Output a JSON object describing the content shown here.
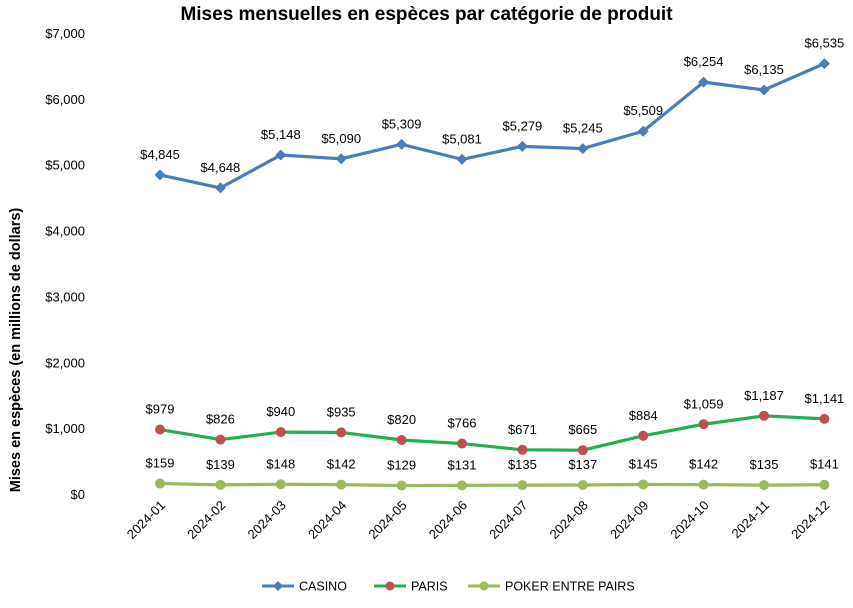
{
  "chart_data": {
    "type": "line",
    "title": "Mises mensuelles en espèces par catégorie de produit",
    "xlabel": "",
    "ylabel": "Mises en espèces (en millions de dollars)",
    "categories": [
      "2024-01",
      "2024-02",
      "2024-03",
      "2024-04",
      "2024-05",
      "2024-06",
      "2024-07",
      "2024-08",
      "2024-09",
      "2024-10",
      "2024-11",
      "2024-12"
    ],
    "ylim": [
      0,
      7000
    ],
    "yticks": [
      0,
      1000,
      2000,
      3000,
      4000,
      5000,
      6000,
      7000
    ],
    "ytick_labels": [
      "$0",
      "$1,000",
      "$2,000",
      "$3,000",
      "$4,000",
      "$5,000",
      "$6,000",
      "$7,000"
    ],
    "grid": false,
    "legend_position": "bottom",
    "series": [
      {
        "name": "CASINO",
        "color": "#4a7ebb",
        "marker": "diamond",
        "values": [
          4845,
          4648,
          5148,
          5090,
          5309,
          5081,
          5279,
          5245,
          5509,
          6254,
          6135,
          6535
        ],
        "labels": [
          "$4,845",
          "$4,648",
          "$5,148",
          "$5,090",
          "$5,309",
          "$5,081",
          "$5,279",
          "$5,245",
          "$5,509",
          "$6,254",
          "$6,135",
          "$6,535"
        ]
      },
      {
        "name": "PARIS",
        "color": "#1fb050",
        "marker_color": "#c0504d",
        "marker": "circle",
        "values": [
          979,
          826,
          940,
          935,
          820,
          766,
          671,
          665,
          884,
          1059,
          1187,
          1141
        ],
        "labels": [
          "$979",
          "$826",
          "$940",
          "$935",
          "$820",
          "$766",
          "$671",
          "$665",
          "$884",
          "$1,059",
          "$1,187",
          "$1,141"
        ]
      },
      {
        "name": "POKER ENTRE PAIRS",
        "color": "#9bbb59",
        "marker": "circle",
        "values": [
          159,
          139,
          148,
          142,
          129,
          131,
          135,
          137,
          145,
          142,
          135,
          141
        ],
        "labels": [
          "$159",
          "$139",
          "$148",
          "$142",
          "$129",
          "$131",
          "$135",
          "$137",
          "$145",
          "$142",
          "$135",
          "$141"
        ]
      }
    ]
  }
}
